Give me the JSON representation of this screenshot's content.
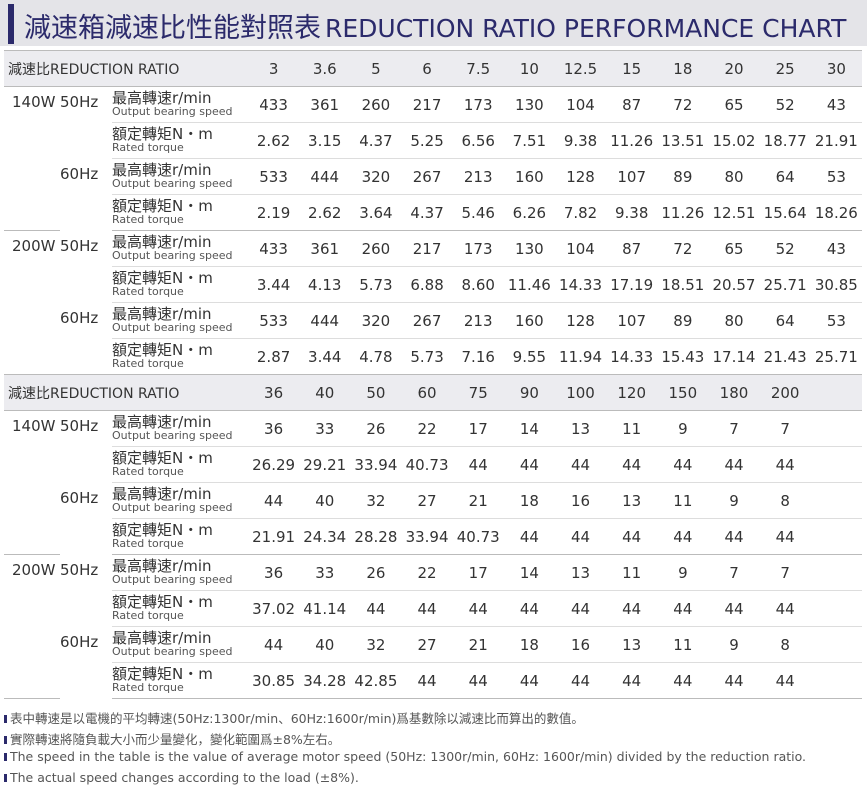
{
  "title": {
    "zh": "減速箱減速比性能對照表",
    "en": "REDUCTION RATIO PERFORMANCE CHART"
  },
  "ratio_label": "減速比REDUCTION RATIO",
  "row_labels": {
    "speed_zh": "最高轉速r/min",
    "speed_en": "Output bearing speed",
    "torque_zh": "額定轉矩N・m",
    "torque_en": "Rated torque"
  },
  "tables": [
    {
      "ratios": [
        "3",
        "3.6",
        "5",
        "6",
        "7.5",
        "10",
        "12.5",
        "15",
        "18",
        "20",
        "25",
        "30"
      ],
      "groups": [
        {
          "power": "140W",
          "freqs": [
            {
              "freq": "50Hz",
              "speed": [
                "433",
                "361",
                "260",
                "217",
                "173",
                "130",
                "104",
                "87",
                "72",
                "65",
                "52",
                "43"
              ],
              "torque": [
                "2.62",
                "3.15",
                "4.37",
                "5.25",
                "6.56",
                "7.51",
                "9.38",
                "11.26",
                "13.51",
                "15.02",
                "18.77",
                "21.91"
              ]
            },
            {
              "freq": "60Hz",
              "speed": [
                "533",
                "444",
                "320",
                "267",
                "213",
                "160",
                "128",
                "107",
                "89",
                "80",
                "64",
                "53"
              ],
              "torque": [
                "2.19",
                "2.62",
                "3.64",
                "4.37",
                "5.46",
                "6.26",
                "7.82",
                "9.38",
                "11.26",
                "12.51",
                "15.64",
                "18.26"
              ]
            }
          ]
        },
        {
          "power": "200W",
          "freqs": [
            {
              "freq": "50Hz",
              "speed": [
                "433",
                "361",
                "260",
                "217",
                "173",
                "130",
                "104",
                "87",
                "72",
                "65",
                "52",
                "43"
              ],
              "torque": [
                "3.44",
                "4.13",
                "5.73",
                "6.88",
                "8.60",
                "11.46",
                "14.33",
                "17.19",
                "18.51",
                "20.57",
                "25.71",
                "30.85"
              ]
            },
            {
              "freq": "60Hz",
              "speed": [
                "533",
                "444",
                "320",
                "267",
                "213",
                "160",
                "128",
                "107",
                "89",
                "80",
                "64",
                "53"
              ],
              "torque": [
                "2.87",
                "3.44",
                "4.78",
                "5.73",
                "7.16",
                "9.55",
                "11.94",
                "14.33",
                "15.43",
                "17.14",
                "21.43",
                "25.71"
              ]
            }
          ]
        }
      ]
    },
    {
      "ratios": [
        "36",
        "40",
        "50",
        "60",
        "75",
        "90",
        "100",
        "120",
        "150",
        "180",
        "200"
      ],
      "groups": [
        {
          "power": "140W",
          "freqs": [
            {
              "freq": "50Hz",
              "speed": [
                "36",
                "33",
                "26",
                "22",
                "17",
                "14",
                "13",
                "11",
                "9",
                "7",
                "7"
              ],
              "torque": [
                "26.29",
                "29.21",
                "33.94",
                "40.73",
                "44",
                "44",
                "44",
                "44",
                "44",
                "44",
                "44"
              ]
            },
            {
              "freq": "60Hz",
              "speed": [
                "44",
                "40",
                "32",
                "27",
                "21",
                "18",
                "16",
                "13",
                "11",
                "9",
                "8"
              ],
              "torque": [
                "21.91",
                "24.34",
                "28.28",
                "33.94",
                "40.73",
                "44",
                "44",
                "44",
                "44",
                "44",
                "44"
              ]
            }
          ]
        },
        {
          "power": "200W",
          "freqs": [
            {
              "freq": "50Hz",
              "speed": [
                "36",
                "33",
                "26",
                "22",
                "17",
                "14",
                "13",
                "11",
                "9",
                "7",
                "7"
              ],
              "torque": [
                "37.02",
                "41.14",
                "44",
                "44",
                "44",
                "44",
                "44",
                "44",
                "44",
                "44",
                "44"
              ]
            },
            {
              "freq": "60Hz",
              "speed": [
                "44",
                "40",
                "32",
                "27",
                "21",
                "18",
                "16",
                "13",
                "11",
                "9",
                "8"
              ],
              "torque": [
                "30.85",
                "34.28",
                "42.85",
                "44",
                "44",
                "44",
                "44",
                "44",
                "44",
                "44",
                "44"
              ]
            }
          ]
        }
      ]
    }
  ],
  "notes": [
    "表中轉速是以電機的平均轉速(50Hz:1300r/min、60Hz:1600r/min)爲基數除以減速比而算出的數值。",
    "實際轉速將隨負載大小而少量變化，變化範圍爲±8%左右。",
    "The speed in the table is the value of average motor speed (50Hz: 1300r/min, 60Hz: 1600r/min) divided by the reduction ratio.",
    "The actual speed changes according to the load (±8%)."
  ]
}
